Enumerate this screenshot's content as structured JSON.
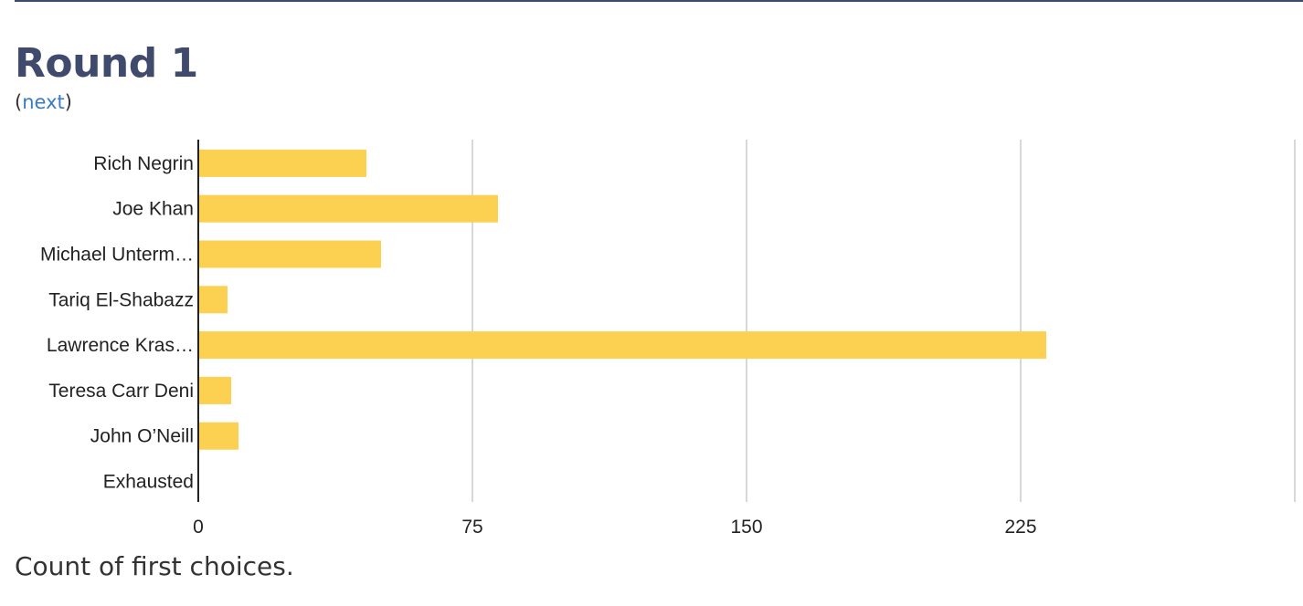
{
  "header": {
    "title": "Round 1",
    "open_paren": "(",
    "next_label": "next",
    "close_paren": ")"
  },
  "caption": "Count of first choices.",
  "colors": {
    "bar": "#fcd050",
    "grid": "#cccccc",
    "axis": "#222222",
    "title": "#3f4a6c",
    "link": "#3a7bc8"
  },
  "chart_data": {
    "type": "bar",
    "orientation": "horizontal",
    "categories": [
      "Rich Negrin",
      "Joe Khan",
      "Michael Unterm…",
      "Tariq El-Shabazz",
      "Lawrence Kras…",
      "Teresa Carr Deni",
      "John O’Neill",
      "Exhausted"
    ],
    "values": [
      46,
      82,
      50,
      8,
      232,
      9,
      11,
      0
    ],
    "xticks": [
      0,
      75,
      150,
      225
    ],
    "xlim": [
      0,
      300
    ],
    "grid": true,
    "title": "",
    "xlabel": "",
    "ylabel": ""
  }
}
